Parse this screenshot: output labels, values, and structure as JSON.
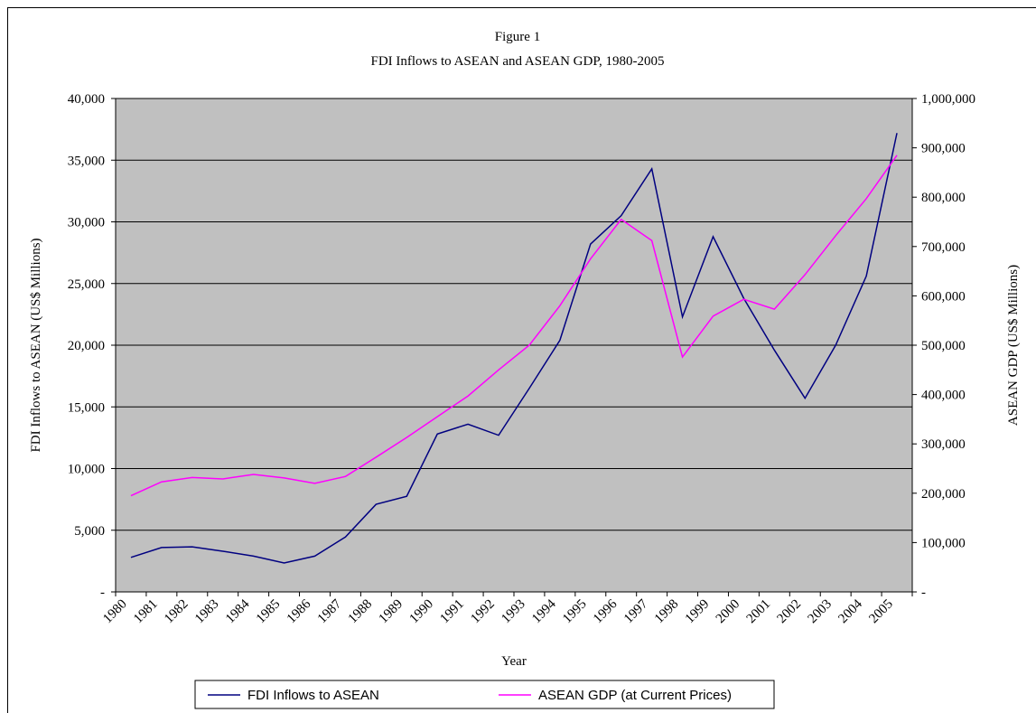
{
  "chart_data": {
    "type": "line",
    "title": "Figure 1",
    "subtitle": "FDI Inflows to ASEAN and ASEAN GDP, 1980-2005",
    "x_label": "Year",
    "y_label": "FDI Inflows  to ASEAN (US$ Millions)",
    "y2_label": "ASEAN GDP (US$ Millions)",
    "categories": [
      "1980",
      "1981",
      "1982",
      "1983",
      "1984",
      "1985",
      "1986",
      "1987",
      "1988",
      "1989",
      "1990",
      "1991",
      "1992",
      "1993",
      "1994",
      "1995",
      "1996",
      "1997",
      "1998",
      "1999",
      "2000",
      "2001",
      "2002",
      "2003",
      "2004",
      "2005"
    ],
    "series": [
      {
        "name": "FDI Inflows to ASEAN",
        "color": "#000080",
        "axis": "y",
        "values": [
          2800,
          3600,
          3650,
          3300,
          2900,
          2350,
          2900,
          4450,
          7100,
          7750,
          12800,
          13600,
          12700,
          16500,
          20400,
          28200,
          30500,
          34300,
          22300,
          28800,
          23800,
          19600,
          15700,
          20000,
          25600,
          37200
        ]
      },
      {
        "name": "ASEAN GDP (at Current Prices)",
        "color": "#ff00ff",
        "axis": "y2",
        "values": [
          195000,
          223000,
          232000,
          229000,
          238000,
          231000,
          220000,
          234000,
          273000,
          313000,
          355000,
          397000,
          450000,
          500000,
          580000,
          675000,
          755000,
          712000,
          476000,
          559000,
          593000,
          573000,
          643000,
          722000,
          797000,
          885000
        ]
      }
    ],
    "ylim": [
      0,
      40000
    ],
    "yticks": [
      {
        "value": 0,
        "label": "-"
      },
      {
        "value": 5000,
        "label": "5,000"
      },
      {
        "value": 10000,
        "label": "10,000"
      },
      {
        "value": 15000,
        "label": "15,000"
      },
      {
        "value": 20000,
        "label": "20,000"
      },
      {
        "value": 25000,
        "label": "25,000"
      },
      {
        "value": 30000,
        "label": "30,000"
      },
      {
        "value": 35000,
        "label": "35,000"
      },
      {
        "value": 40000,
        "label": "40,000"
      }
    ],
    "y2lim": [
      0,
      1000000
    ],
    "y2ticks": [
      {
        "value": 0,
        "label": "-"
      },
      {
        "value": 100000,
        "label": "100,000"
      },
      {
        "value": 200000,
        "label": "200,000"
      },
      {
        "value": 300000,
        "label": "300,000"
      },
      {
        "value": 400000,
        "label": "400,000"
      },
      {
        "value": 500000,
        "label": "500,000"
      },
      {
        "value": 600000,
        "label": "600,000"
      },
      {
        "value": 700000,
        "label": "700,000"
      },
      {
        "value": 800000,
        "label": "800,000"
      },
      {
        "value": 900000,
        "label": "900,000"
      },
      {
        "value": 1000000,
        "label": "1,000,000"
      }
    ],
    "grid": true,
    "plot_background": "#c0c0c0",
    "legend": "bottom"
  }
}
